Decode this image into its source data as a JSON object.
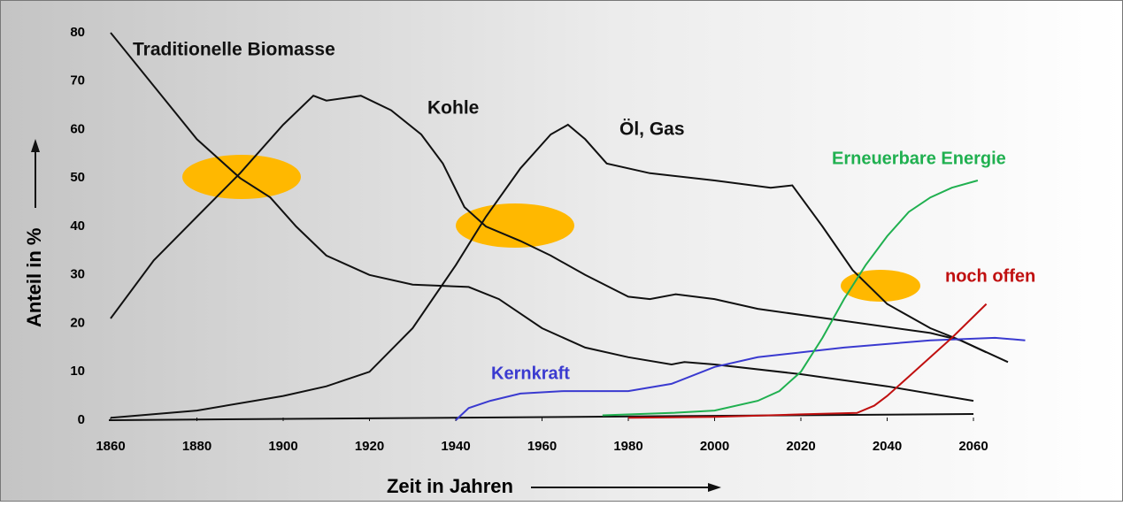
{
  "chart_data": {
    "type": "line",
    "x_label": "Zeit in Jahren",
    "y_label": "Anteil in %",
    "xlim": [
      1860,
      2080
    ],
    "ylim": [
      0,
      80
    ],
    "xticks": [
      1860,
      1880,
      1900,
      1920,
      1940,
      1960,
      1980,
      2000,
      2020,
      2040,
      2060
    ],
    "yticks": [
      0,
      10,
      20,
      30,
      40,
      50,
      60,
      70,
      80
    ],
    "series": [
      {
        "name": "Traditionelle Biomasse",
        "color": "#111111",
        "x": [
          1860,
          1870,
          1880,
          1890,
          1897,
          1903,
          1910,
          1920,
          1930,
          1943,
          1950,
          1960,
          1970,
          1980,
          1990,
          1993,
          2000,
          2020,
          2040,
          2060
        ],
        "values": [
          80,
          69,
          58,
          50,
          46,
          40,
          34,
          30,
          28,
          27.5,
          25,
          19,
          15,
          13,
          11.5,
          12,
          11.5,
          9.5,
          7,
          4
        ]
      },
      {
        "name": "Kohle",
        "color": "#111111",
        "x": [
          1860,
          1870,
          1880,
          1890,
          1900,
          1907,
          1910,
          1918,
          1925,
          1932,
          1937,
          1942,
          1947,
          1955,
          1962,
          1970,
          1980,
          1985,
          1991,
          2000,
          2010,
          2030,
          2050,
          2057,
          2068
        ],
        "values": [
          21,
          33,
          42,
          51,
          61,
          67,
          66,
          67,
          64,
          59,
          53,
          44,
          40,
          37,
          34,
          30,
          25.5,
          25,
          26,
          25,
          23,
          20.5,
          18,
          16.5,
          12
        ]
      },
      {
        "name": "Öl, Gas",
        "color": "#111111",
        "x": [
          1860,
          1880,
          1900,
          1910,
          1920,
          1930,
          1940,
          1947,
          1955,
          1962,
          1966,
          1970,
          1975,
          1985,
          2000,
          2013,
          2018,
          2025,
          2032,
          2040,
          2050,
          2057,
          2063
        ],
        "values": [
          0.5,
          2,
          5,
          7,
          10,
          19,
          32,
          42,
          52,
          59,
          61,
          58,
          53,
          51,
          49.5,
          48,
          48.5,
          40,
          31,
          24,
          19,
          16.5,
          14
        ]
      },
      {
        "name": "Kernkraft",
        "color": "#3a3ad0",
        "x": [
          1940,
          1943,
          1948,
          1955,
          1965,
          1980,
          1990,
          2000,
          2010,
          2030,
          2050,
          2065,
          2072
        ],
        "values": [
          0,
          2.5,
          4,
          5.5,
          6,
          6,
          7.5,
          11,
          13,
          15,
          16.5,
          17,
          16.5
        ]
      },
      {
        "name": "Erneuerbare Energie",
        "color": "#20b050",
        "x": [
          1974,
          1990,
          2000,
          2010,
          2015,
          2020,
          2025,
          2030,
          2035,
          2040,
          2045,
          2050,
          2055,
          2061
        ],
        "values": [
          1,
          1.5,
          2,
          4,
          6,
          10,
          17,
          25,
          32,
          38,
          43,
          46,
          48,
          49.5
        ]
      },
      {
        "name": "noch offen",
        "color": "#c01010",
        "x": [
          1980,
          2000,
          2020,
          2033,
          2037,
          2040,
          2045,
          2050,
          2055,
          2063
        ],
        "values": [
          0.5,
          0.7,
          1.2,
          1.5,
          3,
          5,
          9,
          13,
          17,
          24
        ]
      }
    ]
  }
}
